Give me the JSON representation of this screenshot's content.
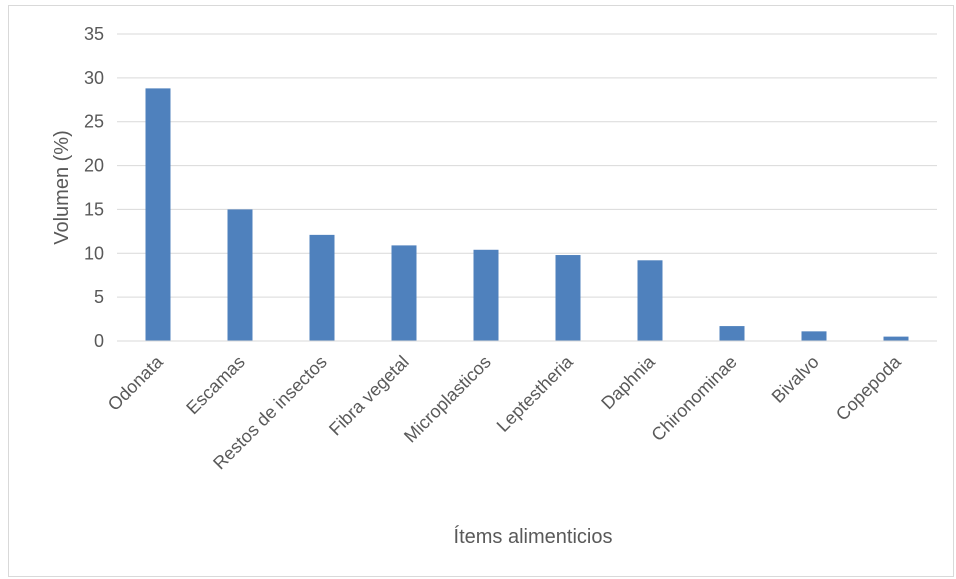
{
  "chart_data": {
    "type": "bar",
    "title": "",
    "xlabel": "Ítems alimenticios",
    "ylabel": "Volumen (%)",
    "ylim": [
      0,
      35
    ],
    "yticks": [
      0,
      5,
      10,
      15,
      20,
      25,
      30,
      35
    ],
    "grid": true,
    "legend": "none",
    "bar_color": "#4f81bd",
    "grid_color": "#d9d9d9",
    "categories": [
      "Odonata",
      "Escamas",
      "Restos de insectos",
      "Fibra vegetal",
      "Microplasticos",
      "Leptestheria",
      "Daphnia",
      "Chironominae",
      "Bivalvo",
      "Copepoda"
    ],
    "values": [
      28.8,
      15.0,
      12.1,
      10.9,
      10.4,
      9.8,
      9.2,
      1.7,
      1.1,
      0.5
    ]
  }
}
